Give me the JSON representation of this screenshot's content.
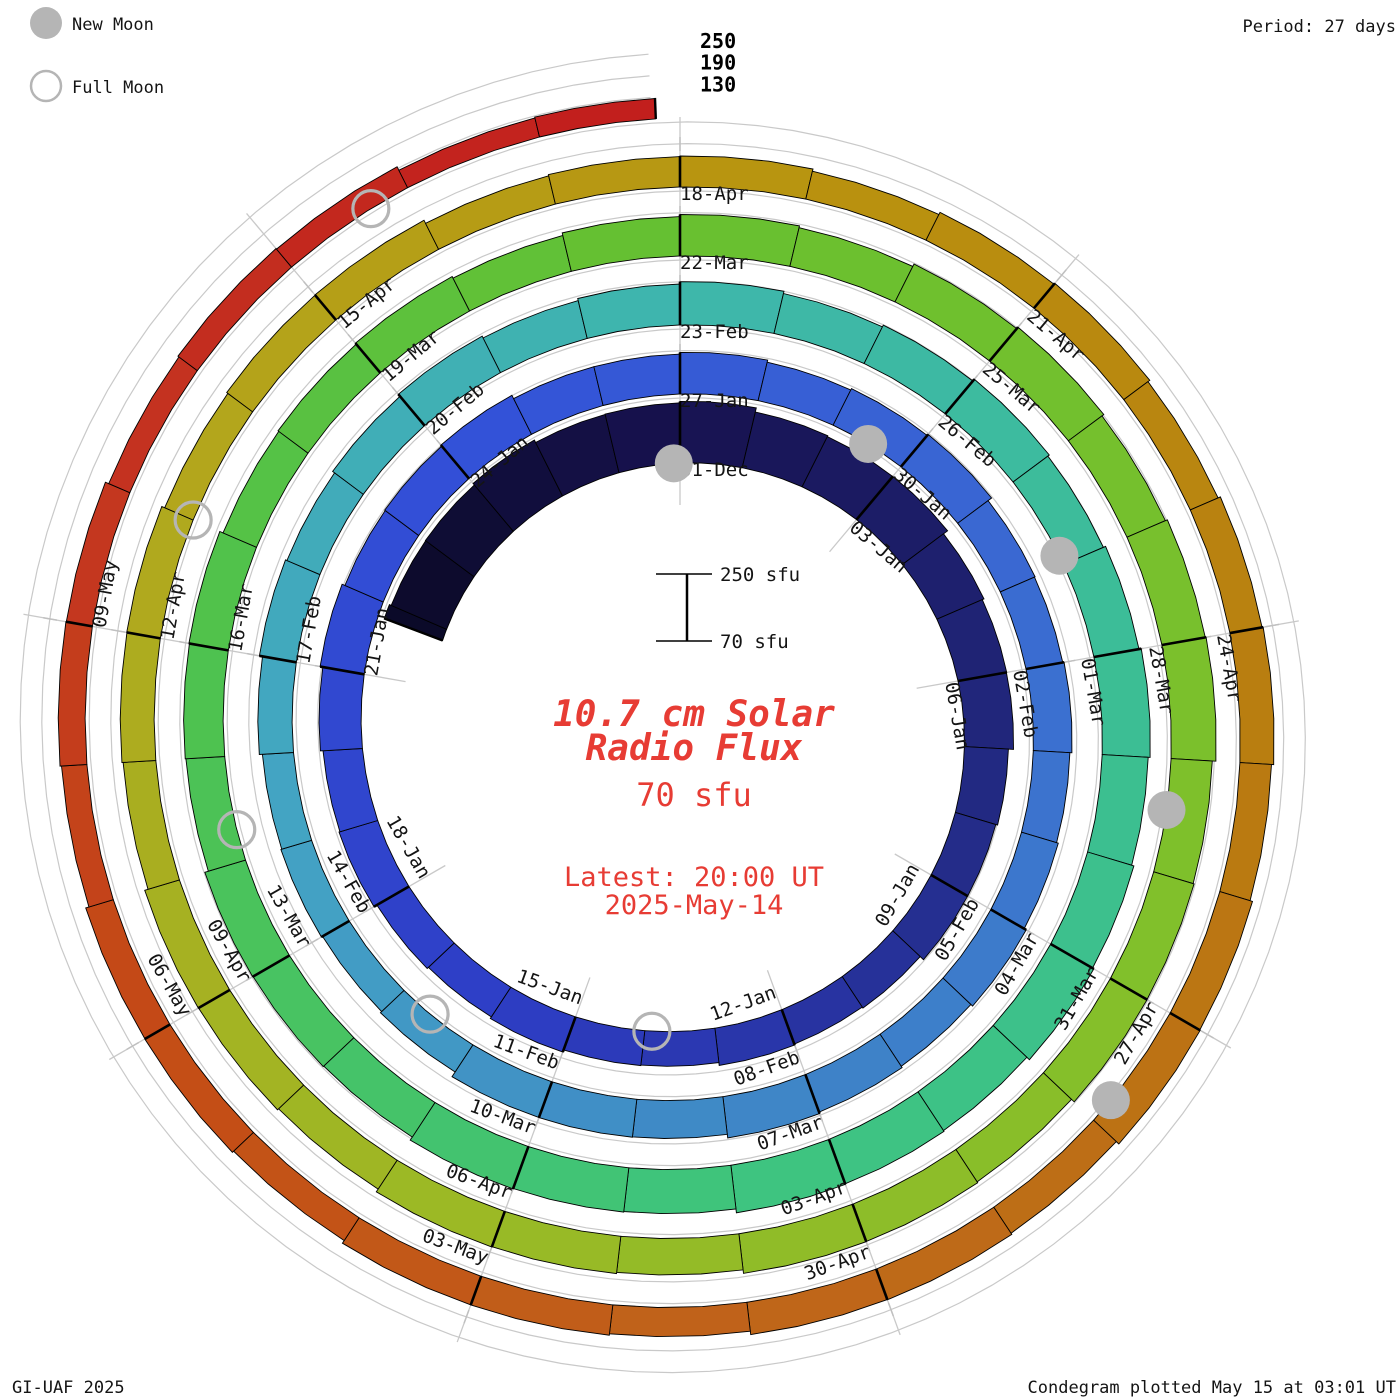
{
  "legend": {
    "new_moon": "New Moon",
    "full_moon": "Full Moon"
  },
  "header": {
    "period": "Period: 27 days"
  },
  "footer": {
    "left": "GI-UAF 2025",
    "right": "Condegram plotted May 15 at 03:01 UT"
  },
  "center": {
    "scale_max_label": "250 sfu",
    "scale_min_label": "70 sfu",
    "title_line1": "10.7 cm Solar",
    "title_line2": "Radio Flux",
    "flux_value": "70 sfu",
    "latest_line1": "Latest: 20:00 UT",
    "latest_line2": "2025-May-14"
  },
  "chart_data": {
    "type": "bar",
    "layout": "polar_spiral",
    "title": "10.7 cm Solar Radio Flux",
    "units": "sfu",
    "period_days": 27,
    "baseline_sfu": 70,
    "grid_sfu": [
      130,
      190,
      250
    ],
    "grid_labels": [
      "250",
      "190",
      "130"
    ],
    "start_day_offset": -5.2,
    "end_day_offset": 134.83,
    "start_date": "2024-12-26",
    "end_date": "2025-05-14 20:00 UT",
    "label_day_offsets": [
      0,
      3,
      6,
      9,
      12,
      15,
      18,
      21,
      24,
      27,
      30,
      33,
      36,
      39,
      42,
      45,
      48,
      51,
      54,
      57,
      60,
      63,
      66,
      69,
      72,
      75,
      78,
      81,
      84,
      87,
      90,
      93,
      96,
      99,
      102,
      105,
      108,
      111,
      114,
      117,
      120,
      123,
      126,
      129
    ],
    "date_labels": [
      "31-Dec",
      "03-Jan",
      "06-Jan",
      "09-Jan",
      "12-Jan",
      "15-Jan",
      "18-Jan",
      "21-Jan",
      "24-Jan",
      "27-Jan",
      "30-Jan",
      "02-Feb",
      "05-Feb",
      "08-Feb",
      "11-Feb",
      "14-Feb",
      "17-Feb",
      "20-Feb",
      "23-Feb",
      "26-Feb",
      "01-Mar",
      "04-Mar",
      "07-Mar",
      "10-Mar",
      "13-Mar",
      "16-Mar",
      "19-Mar",
      "22-Mar",
      "25-Mar",
      "28-Mar",
      "31-Mar",
      "03-Apr",
      "06-Apr",
      "09-Apr",
      "12-Apr",
      "15-Apr",
      "18-Apr",
      "21-Apr",
      "24-Apr",
      "27-Apr",
      "30-Apr",
      "03-May",
      "06-May",
      "09-May"
    ],
    "series": {
      "name": "10.7 cm radio flux (sfu)",
      "t": [
        -5.2,
        0,
        3,
        6,
        9,
        12,
        15,
        18,
        21,
        24,
        27,
        30,
        33,
        36,
        39,
        42,
        45,
        48,
        51,
        54,
        57,
        60,
        63,
        66,
        69,
        72,
        75,
        78,
        81,
        84,
        87,
        90,
        93,
        96,
        99,
        102,
        105,
        108,
        111,
        114,
        117,
        120,
        123,
        126,
        129,
        132,
        134.83
      ],
      "sfu": [
        240,
        238,
        225,
        205,
        185,
        170,
        168,
        175,
        190,
        188,
        180,
        185,
        172,
        178,
        182,
        175,
        152,
        168,
        178,
        185,
        190,
        198,
        205,
        200,
        192,
        185,
        178,
        172,
        180,
        188,
        192,
        185,
        178,
        172,
        168,
        162,
        158,
        152,
        156,
        160,
        164,
        158,
        152,
        148,
        142,
        134,
        124
      ]
    },
    "colormap": [
      [
        -5.2,
        "#0b0a28"
      ],
      [
        0,
        "#171250"
      ],
      [
        8,
        "#232b85"
      ],
      [
        16,
        "#2e3ec6"
      ],
      [
        24,
        "#3350d8"
      ],
      [
        32,
        "#3a6ad2"
      ],
      [
        40,
        "#3f88c6"
      ],
      [
        46,
        "#43a3c4"
      ],
      [
        54,
        "#3eb6ac"
      ],
      [
        61,
        "#3cbf92"
      ],
      [
        67,
        "#3ec47e"
      ],
      [
        75,
        "#4fc24d"
      ],
      [
        81,
        "#67c030"
      ],
      [
        89,
        "#7fc02b"
      ],
      [
        96,
        "#9aba26"
      ],
      [
        103,
        "#b2a81d"
      ],
      [
        109,
        "#b9930f"
      ],
      [
        115,
        "#b97c10"
      ],
      [
        121,
        "#c0641a"
      ],
      [
        126,
        "#c44c16"
      ],
      [
        130,
        "#c43420"
      ],
      [
        134.83,
        "#c21d1d"
      ]
    ],
    "moons": {
      "new": [
        {
          "date": "2024-12-30",
          "t": -0.1
        },
        {
          "date": "2025-01-29",
          "t": 29.5
        },
        {
          "date": "2025-02-28",
          "t": 58.9
        },
        {
          "date": "2025-03-29",
          "t": 88.45
        },
        {
          "date": "2025-04-27",
          "t": 117.8
        }
      ],
      "full": [
        {
          "date": "2025-01-13",
          "t": 13.9
        },
        {
          "date": "2025-02-12",
          "t": 43.6
        },
        {
          "date": "2025-03-14",
          "t": 73.3
        },
        {
          "date": "2025-04-13",
          "t": 103.0
        },
        {
          "date": "2025-05-12",
          "t": 132.7
        }
      ]
    },
    "colors": {
      "accent_red": "#e73c34",
      "moon_gray": "#b5b5b5",
      "grid_gray": "#c9c9c9",
      "text_black": "#141414"
    }
  }
}
